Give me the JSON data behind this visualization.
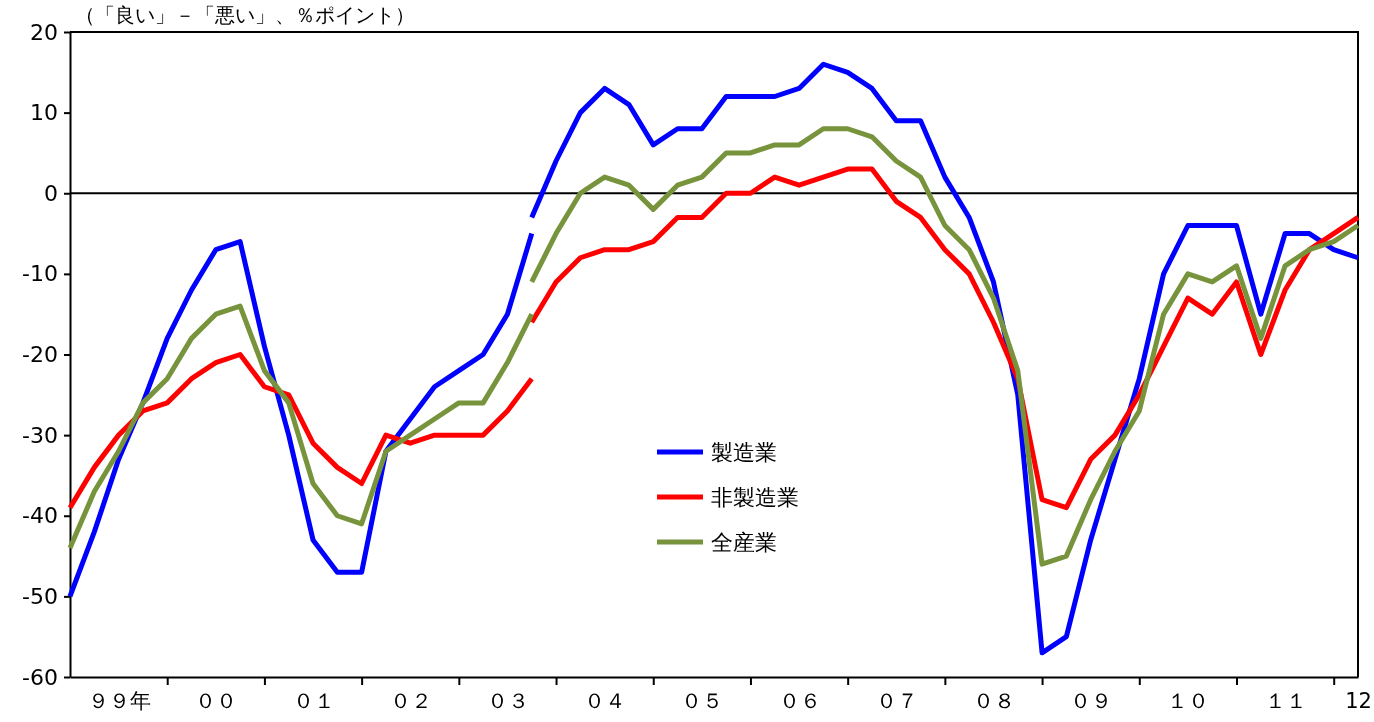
{
  "chart_data": {
    "type": "line",
    "ylabel": "（「良い」－「悪い」、％ポイント）",
    "categories": [
      null,
      null,
      "９９年",
      null,
      null,
      null,
      "００",
      null,
      null,
      null,
      "０１",
      null,
      null,
      null,
      "０２",
      null,
      null,
      null,
      "０３",
      null,
      null,
      null,
      "０４",
      null,
      null,
      null,
      "０５",
      null,
      null,
      null,
      "０６",
      null,
      null,
      null,
      "０７",
      null,
      null,
      null,
      "０８",
      null,
      null,
      null,
      "０９",
      null,
      null,
      null,
      "１０",
      null,
      null,
      null,
      "１１",
      null,
      null,
      "12"
    ],
    "ylim": [
      -60,
      20
    ],
    "yticks": [
      -60,
      -50,
      -40,
      -30,
      -20,
      -10,
      0,
      10,
      20
    ],
    "grid": false,
    "legend": "center",
    "line_style": "solid",
    "marker": "none",
    "ref_lines": [
      {
        "axis": "y",
        "value": 0,
        "color": "#000000"
      }
    ],
    "series": [
      {
        "name": "製造業",
        "color": "#0000ff",
        "values": [
          null,
          null,
          null,
          null,
          null,
          null,
          null,
          null,
          null,
          null,
          null,
          null,
          null,
          null,
          null,
          null,
          null,
          null,
          null,
          -3,
          4,
          10,
          13,
          11,
          6,
          8,
          8,
          12,
          12,
          12,
          13,
          16,
          15,
          13,
          9,
          9,
          2,
          -3,
          -11,
          -25,
          -57,
          -55,
          -43,
          -33,
          -23,
          -10,
          -4,
          -4,
          -4,
          -15,
          -5,
          -5,
          -7,
          -8
        ]
      },
      {
        "name": "非製造業",
        "color": "#ff0000",
        "values": [
          null,
          null,
          null,
          null,
          null,
          null,
          null,
          null,
          null,
          null,
          null,
          null,
          null,
          null,
          null,
          null,
          null,
          null,
          null,
          -16,
          -11,
          -8,
          -7,
          -7,
          -6,
          -3,
          -3,
          0,
          0,
          2,
          1,
          2,
          3,
          3,
          -1,
          -3,
          -7,
          -10,
          -16,
          -23,
          -38,
          -39,
          -33,
          -30,
          -25,
          -19,
          -13,
          -15,
          -11,
          -20,
          -12,
          -7,
          -5,
          -3
        ]
      },
      {
        "name": "全産業",
        "color": "#77933c",
        "values": [
          null,
          null,
          null,
          null,
          null,
          null,
          null,
          null,
          null,
          null,
          null,
          null,
          null,
          null,
          null,
          null,
          null,
          null,
          null,
          -11,
          -5,
          0,
          2,
          1,
          -2,
          1,
          2,
          5,
          5,
          6,
          6,
          8,
          8,
          7,
          4,
          2,
          -4,
          -7,
          -13,
          -22,
          -46,
          -45,
          -38,
          -32,
          -27,
          -15,
          -10,
          -11,
          -9,
          -18,
          -9,
          -7,
          -6,
          -4
        ]
      },
      {
        "color": "#0000ff",
        "values": [
          -50,
          -42,
          -33,
          -26,
          -18,
          -12,
          -7,
          -6,
          -19,
          -30,
          -43,
          -47,
          -47,
          -32,
          -28,
          -24,
          -22,
          -20,
          -15,
          -5,
          null,
          null,
          null,
          null,
          null,
          null,
          null,
          null,
          null,
          null,
          null,
          null,
          null,
          null,
          null,
          null,
          null,
          null,
          null,
          null,
          null,
          null,
          null,
          null,
          null,
          null,
          null,
          null,
          null,
          null,
          null,
          null,
          null,
          null
        ]
      },
      {
        "color": "#ff0000",
        "values": [
          -39,
          -34,
          -30,
          -27,
          -26,
          -23,
          -21,
          -20,
          -24,
          -25,
          -31,
          -34,
          -36,
          -30,
          -31,
          -30,
          -30,
          -30,
          -27,
          -23,
          null,
          null,
          null,
          null,
          null,
          null,
          null,
          null,
          null,
          null,
          null,
          null,
          null,
          null,
          null,
          null,
          null,
          null,
          null,
          null,
          null,
          null,
          null,
          null,
          null,
          null,
          null,
          null,
          null,
          null,
          null,
          null,
          null,
          null
        ]
      },
      {
        "color": "#77933c",
        "values": [
          -44,
          -37,
          -32,
          -26,
          -23,
          -18,
          -15,
          -14,
          -22,
          -26,
          -36,
          -40,
          -41,
          -32,
          -30,
          -28,
          -26,
          -26,
          -21,
          -15,
          null,
          null,
          null,
          null,
          null,
          null,
          null,
          null,
          null,
          null,
          null,
          null,
          null,
          null,
          null,
          null,
          null,
          null,
          null,
          null,
          null,
          null,
          null,
          null,
          null,
          null,
          null,
          null,
          null,
          null,
          null,
          null,
          null,
          null
        ]
      }
    ]
  }
}
